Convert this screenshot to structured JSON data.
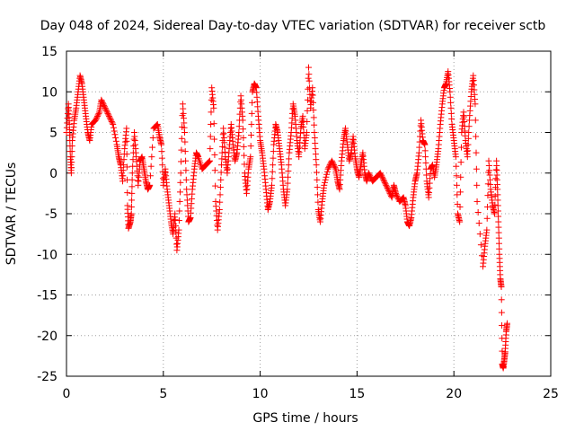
{
  "chart_data": {
    "type": "scatter",
    "title": "Day 048 of 2024, Sidereal Day-to-day VTEC variation (SDTVAR) for receiver sctb",
    "xlabel": "GPS time / hours",
    "ylabel": "SDTVAR / TECUs",
    "xlim": [
      0,
      25
    ],
    "ylim": [
      -25,
      15
    ],
    "xticks": [
      0,
      5,
      10,
      15,
      20,
      25
    ],
    "yticks": [
      15,
      10,
      5,
      0,
      -5,
      -10,
      -15,
      -20,
      -25
    ],
    "grid": true,
    "marker": "+",
    "color": "#ff0000",
    "series": [
      {
        "name": "SDTVAR",
        "points": [
          [
            0.0,
            5.0
          ],
          [
            0.1,
            8.5
          ],
          [
            0.15,
            6.0
          ],
          [
            0.2,
            2.0
          ],
          [
            0.25,
            0.0
          ],
          [
            0.3,
            4.0
          ],
          [
            0.4,
            6.5
          ],
          [
            0.5,
            8.0
          ],
          [
            0.6,
            10.0
          ],
          [
            0.7,
            12.0
          ],
          [
            0.8,
            11.0
          ],
          [
            0.9,
            9.0
          ],
          [
            1.0,
            7.0
          ],
          [
            1.1,
            5.0
          ],
          [
            1.2,
            4.0
          ],
          [
            1.3,
            6.0
          ],
          [
            1.5,
            6.5
          ],
          [
            1.7,
            7.5
          ],
          [
            1.8,
            9.0
          ],
          [
            2.0,
            8.0
          ],
          [
            2.2,
            7.0
          ],
          [
            2.4,
            6.0
          ],
          [
            2.6,
            3.5
          ],
          [
            2.7,
            2.0
          ],
          [
            2.8,
            1.0
          ],
          [
            2.9,
            -1.0
          ],
          [
            3.0,
            3.0
          ],
          [
            3.1,
            5.5
          ],
          [
            3.15,
            -4.0
          ],
          [
            3.2,
            -6.8
          ],
          [
            3.3,
            -6.0
          ],
          [
            3.35,
            -5.0
          ],
          [
            3.4,
            0.0
          ],
          [
            3.5,
            5.0
          ],
          [
            3.6,
            2.0
          ],
          [
            3.7,
            -1.5
          ],
          [
            3.8,
            1.5
          ],
          [
            3.9,
            2.0
          ],
          [
            4.0,
            0.5
          ],
          [
            4.1,
            -1.0
          ],
          [
            4.2,
            -2.0
          ],
          [
            4.3,
            -1.5
          ],
          [
            4.5,
            5.5
          ],
          [
            4.7,
            6.0
          ],
          [
            4.8,
            4.5
          ],
          [
            4.9,
            3.5
          ],
          [
            5.0,
            -1.5
          ],
          [
            5.1,
            0.5
          ],
          [
            5.2,
            -2.0
          ],
          [
            5.3,
            -4.0
          ],
          [
            5.4,
            -6.0
          ],
          [
            5.5,
            -7.5
          ],
          [
            5.6,
            -5.0
          ],
          [
            5.7,
            -9.5
          ],
          [
            5.8,
            -7.0
          ],
          [
            5.9,
            0.0
          ],
          [
            6.0,
            8.5
          ],
          [
            6.1,
            5.0
          ],
          [
            6.2,
            -2.0
          ],
          [
            6.3,
            -6.0
          ],
          [
            6.4,
            -5.5
          ],
          [
            6.5,
            -2.0
          ],
          [
            6.6,
            0.5
          ],
          [
            6.7,
            2.5
          ],
          [
            6.8,
            2.0
          ],
          [
            7.0,
            0.5
          ],
          [
            7.2,
            1.0
          ],
          [
            7.4,
            1.5
          ],
          [
            7.5,
            10.5
          ],
          [
            7.6,
            8.0
          ],
          [
            7.7,
            -3.5
          ],
          [
            7.8,
            -7.0
          ],
          [
            7.9,
            -4.5
          ],
          [
            8.0,
            1.0
          ],
          [
            8.1,
            5.5
          ],
          [
            8.2,
            2.0
          ],
          [
            8.3,
            0.0
          ],
          [
            8.4,
            3.0
          ],
          [
            8.5,
            6.0
          ],
          [
            8.6,
            3.5
          ],
          [
            8.7,
            1.5
          ],
          [
            8.8,
            2.5
          ],
          [
            8.9,
            5.0
          ],
          [
            9.0,
            9.5
          ],
          [
            9.1,
            6.5
          ],
          [
            9.2,
            0.0
          ],
          [
            9.3,
            -2.5
          ],
          [
            9.4,
            0.5
          ],
          [
            9.5,
            2.0
          ],
          [
            9.6,
            10.0
          ],
          [
            9.7,
            11.0
          ],
          [
            9.8,
            10.5
          ],
          [
            9.9,
            7.0
          ],
          [
            10.0,
            4.0
          ],
          [
            10.1,
            2.5
          ],
          [
            10.2,
            0.5
          ],
          [
            10.3,
            -2.0
          ],
          [
            10.4,
            -4.5
          ],
          [
            10.5,
            -3.5
          ],
          [
            10.6,
            -1.5
          ],
          [
            10.7,
            3.5
          ],
          [
            10.8,
            6.0
          ],
          [
            10.9,
            5.0
          ],
          [
            11.0,
            3.0
          ],
          [
            11.1,
            1.0
          ],
          [
            11.2,
            -2.0
          ],
          [
            11.3,
            -4.0
          ],
          [
            11.4,
            -2.0
          ],
          [
            11.5,
            2.5
          ],
          [
            11.6,
            5.0
          ],
          [
            11.7,
            8.5
          ],
          [
            11.8,
            7.0
          ],
          [
            11.9,
            4.0
          ],
          [
            12.0,
            2.0
          ],
          [
            12.1,
            5.5
          ],
          [
            12.2,
            7.0
          ],
          [
            12.3,
            3.0
          ],
          [
            12.4,
            5.0
          ],
          [
            12.5,
            13.0
          ],
          [
            12.6,
            8.0
          ],
          [
            12.7,
            10.5
          ],
          [
            12.8,
            5.0
          ],
          [
            12.9,
            1.0
          ],
          [
            13.0,
            -4.5
          ],
          [
            13.1,
            -6.0
          ],
          [
            13.2,
            -3.5
          ],
          [
            13.3,
            -1.5
          ],
          [
            13.5,
            0.5
          ],
          [
            13.7,
            1.5
          ],
          [
            13.9,
            0.5
          ],
          [
            14.0,
            -1.0
          ],
          [
            14.1,
            -2.0
          ],
          [
            14.2,
            1.5
          ],
          [
            14.3,
            4.0
          ],
          [
            14.4,
            5.5
          ],
          [
            14.5,
            3.5
          ],
          [
            14.6,
            1.5
          ],
          [
            14.7,
            2.5
          ],
          [
            14.8,
            4.5
          ],
          [
            14.9,
            2.0
          ],
          [
            15.0,
            0.5
          ],
          [
            15.1,
            -0.5
          ],
          [
            15.2,
            1.0
          ],
          [
            15.3,
            2.5
          ],
          [
            15.4,
            0.0
          ],
          [
            15.5,
            -1.0
          ],
          [
            15.6,
            0.0
          ],
          [
            15.8,
            -1.0
          ],
          [
            16.0,
            -0.5
          ],
          [
            16.2,
            0.0
          ],
          [
            16.4,
            -1.0
          ],
          [
            16.6,
            -2.0
          ],
          [
            16.8,
            -3.0
          ],
          [
            16.9,
            -1.5
          ],
          [
            17.0,
            -2.5
          ],
          [
            17.2,
            -3.5
          ],
          [
            17.4,
            -3.0
          ],
          [
            17.5,
            -4.0
          ],
          [
            17.6,
            -6.0
          ],
          [
            17.7,
            -6.5
          ],
          [
            17.8,
            -5.5
          ],
          [
            17.9,
            -3.0
          ],
          [
            18.0,
            -1.0
          ],
          [
            18.1,
            0.0
          ],
          [
            18.2,
            2.5
          ],
          [
            18.3,
            6.5
          ],
          [
            18.4,
            4.0
          ],
          [
            18.5,
            3.5
          ],
          [
            18.6,
            -1.0
          ],
          [
            18.7,
            -3.0
          ],
          [
            18.8,
            0.5
          ],
          [
            18.9,
            1.0
          ],
          [
            19.0,
            -0.5
          ],
          [
            19.1,
            1.0
          ],
          [
            19.2,
            3.0
          ],
          [
            19.3,
            6.0
          ],
          [
            19.4,
            8.5
          ],
          [
            19.5,
            10.5
          ],
          [
            19.6,
            11.0
          ],
          [
            19.7,
            12.5
          ],
          [
            19.8,
            10.0
          ],
          [
            19.9,
            6.0
          ],
          [
            20.0,
            4.0
          ],
          [
            20.1,
            2.0
          ],
          [
            20.2,
            -5.0
          ],
          [
            20.3,
            -6.0
          ],
          [
            20.4,
            5.0
          ],
          [
            20.5,
            7.5
          ],
          [
            20.6,
            4.0
          ],
          [
            20.7,
            2.0
          ],
          [
            20.8,
            6.5
          ],
          [
            20.9,
            10.0
          ],
          [
            21.0,
            12.0
          ],
          [
            21.1,
            8.5
          ],
          [
            21.2,
            -3.5
          ],
          [
            21.5,
            -11.5
          ],
          [
            21.6,
            -9.0
          ],
          [
            21.7,
            -7.0
          ],
          [
            21.8,
            1.5
          ],
          [
            21.9,
            -2.0
          ],
          [
            22.0,
            -4.0
          ],
          [
            22.1,
            -5.0
          ],
          [
            22.2,
            1.5
          ],
          [
            22.25,
            -2.0
          ],
          [
            22.3,
            -6.0
          ],
          [
            22.35,
            -10.0
          ],
          [
            22.4,
            -13.0
          ],
          [
            22.45,
            -14.0
          ],
          [
            22.5,
            -23.5
          ],
          [
            22.55,
            -24.0
          ],
          [
            22.6,
            -23.0
          ],
          [
            22.65,
            -22.0
          ],
          [
            22.7,
            -19.5
          ],
          [
            22.75,
            -18.5
          ]
        ]
      }
    ]
  }
}
